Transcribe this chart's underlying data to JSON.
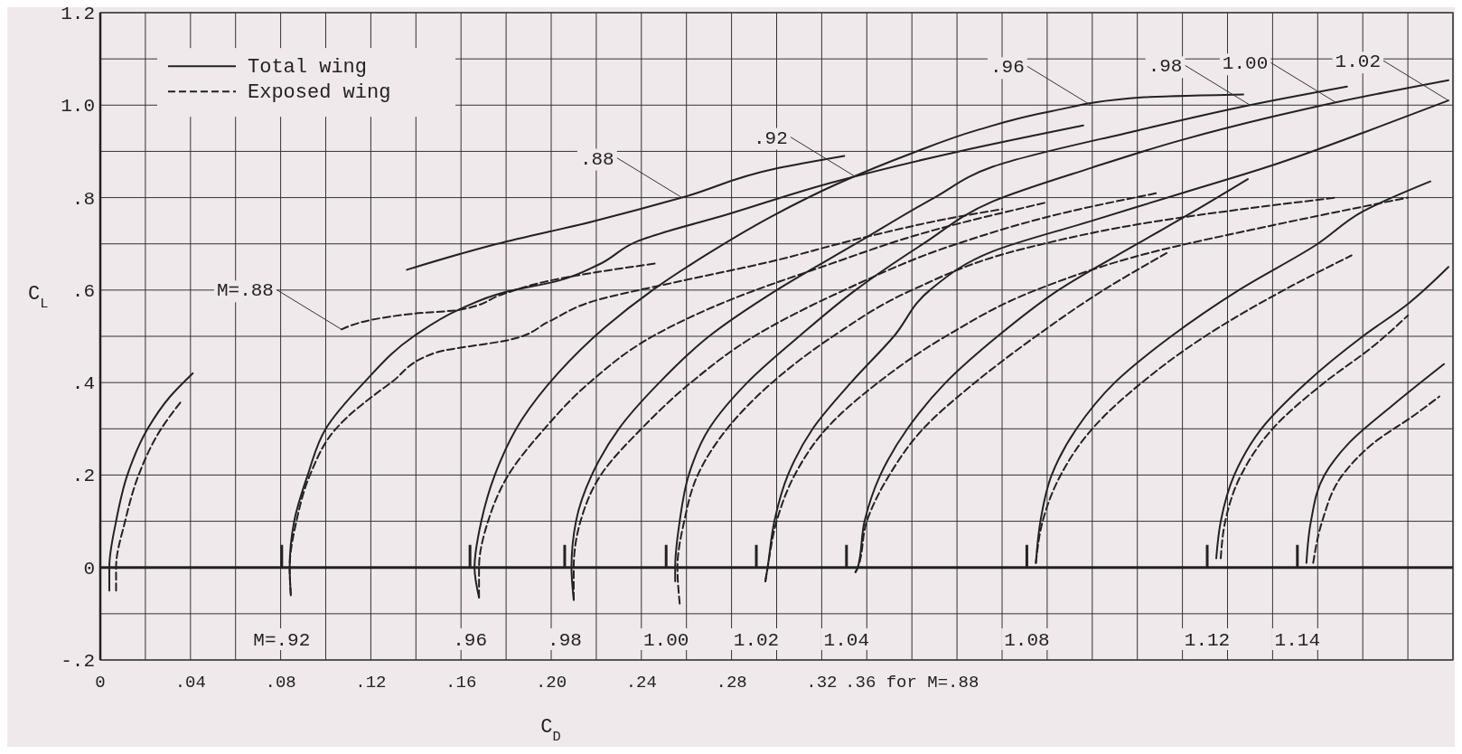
{
  "chart_data": {
    "type": "line",
    "xlabel": "C$_{D}$",
    "ylabel": "C$_{L}$",
    "xlim": [
      0,
      0.6
    ],
    "ylim": [
      -0.2,
      1.2
    ],
    "xticks": [
      0,
      {
        "value": 0.02,
        "label": null
      },
      {
        "value": 0.04,
        "label": ".04"
      },
      {
        "value": 0.06,
        "label": null
      },
      {
        "value": 0.08,
        "label": ".08"
      },
      {
        "value": 0.1,
        "label": null
      },
      {
        "value": 0.12,
        "label": ".12"
      },
      {
        "value": 0.14,
        "label": null
      },
      {
        "value": 0.16,
        "label": ".16"
      },
      {
        "value": 0.18,
        "label": null
      },
      {
        "value": 0.2,
        "label": ".20"
      },
      {
        "value": 0.22,
        "label": null
      },
      {
        "value": 0.24,
        "label": ".24"
      },
      {
        "value": 0.26,
        "label": null
      },
      {
        "value": 0.28,
        "label": ".28"
      },
      {
        "value": 0.3,
        "label": null
      },
      {
        "value": 0.32,
        "label": ".32"
      },
      {
        "value": 0.34,
        "label": null
      },
      {
        "value": 0.36,
        "label": ".36 for M=.88"
      },
      {
        "value": 0.38,
        "label": null
      },
      {
        "value": 0.4,
        "label": null
      },
      {
        "value": 0.42,
        "label": null
      },
      {
        "value": 0.44,
        "label": null
      },
      {
        "value": 0.46,
        "label": null
      },
      {
        "value": 0.48,
        "label": null
      },
      {
        "value": 0.5,
        "label": null
      },
      {
        "value": 0.52,
        "label": null
      },
      {
        "value": 0.54,
        "label": null
      },
      {
        "value": 0.56,
        "label": null
      },
      {
        "value": 0.58,
        "label": null
      },
      {
        "value": 0.6,
        "label": null
      }
    ],
    "yticks": [
      {
        "value": -0.2,
        "label": "-.2"
      },
      {
        "value": -0.1,
        "label": null
      },
      0,
      {
        "value": 0.1,
        "label": null
      },
      {
        "value": 0.2,
        "label": ".2"
      },
      {
        "value": 0.3,
        "label": null
      },
      {
        "value": 0.4,
        "label": ".4"
      },
      {
        "value": 0.5,
        "label": null
      },
      {
        "value": 0.6,
        "label": ".6"
      },
      {
        "value": 0.7,
        "label": null
      },
      {
        "value": 0.8,
        "label": ".8"
      },
      {
        "value": 0.9,
        "label": null
      },
      {
        "value": 1.0,
        "label": "1.0"
      },
      {
        "value": 1.1,
        "label": null
      },
      {
        "value": 1.2,
        "label": "1.2"
      }
    ],
    "grid": true,
    "legend": "top left",
    "ref_lines": [
      {
        "axis": "y",
        "value": 0
      }
    ],
    "series": [
      {
        "name": "Total wing",
        "color": "#222222",
        "line_style": "solid",
        "x": [
          0.004,
          0.004,
          0.007,
          0.012,
          0.021,
          0.031,
          0.041
        ],
        "values": [
          -0.05,
          0,
          0.1,
          0.2,
          0.3,
          0.37,
          0.42
        ]
      },
      {
        "color": "#222222",
        "line_style": "solid",
        "x": [
          0.136,
          0.176,
          0.218,
          0.258,
          0.3,
          0.33
        ],
        "values": [
          0.644,
          0.7,
          0.748,
          0.8,
          0.863,
          0.89
        ]
      },
      {
        "color": "#222222",
        "line_style": "solid",
        "x": [
          0.0845,
          0.084,
          0.086,
          0.092,
          0.1,
          0.117,
          0.139,
          0.16,
          0.179,
          0.203,
          0.221,
          0.238,
          0.279,
          0.324,
          0.381,
          0.436
        ],
        "values": [
          -0.057,
          0,
          0.1,
          0.2,
          0.3,
          0.4,
          0.5,
          0.56,
          0.595,
          0.62,
          0.655,
          0.705,
          0.765,
          0.832,
          0.9,
          0.956
        ]
      },
      {
        "color": "#222222",
        "line_style": "solid",
        "x": [
          0.168,
          0.166,
          0.169,
          0.175,
          0.187,
          0.203,
          0.224,
          0.245,
          0.27,
          0.298,
          0.327,
          0.36,
          0.389,
          0.422,
          0.463,
          0.507
        ],
        "values": [
          -0.065,
          0,
          0.1,
          0.2,
          0.32,
          0.42,
          0.52,
          0.6,
          0.68,
          0.76,
          0.83,
          0.896,
          0.946,
          0.987,
          1.017,
          1.023
        ]
      },
      {
        "color": "#222222",
        "line_style": "solid",
        "x": [
          0.21,
          0.209,
          0.211,
          0.218,
          0.23,
          0.248,
          0.27,
          0.3,
          0.335,
          0.37,
          0.396,
          0.46,
          0.51,
          0.553
        ],
        "values": [
          -0.07,
          0,
          0.1,
          0.2,
          0.3,
          0.4,
          0.5,
          0.6,
          0.7,
          0.8,
          0.867,
          0.945,
          1.0,
          1.04
        ]
      },
      {
        "color": "#222222",
        "line_style": "solid",
        "x": [
          0.255,
          0.255,
          0.257,
          0.261,
          0.27,
          0.287,
          0.31,
          0.335,
          0.365,
          0.396,
          0.44,
          0.48,
          0.52,
          0.548,
          0.598
        ],
        "values": [
          -0.03,
          0,
          0.1,
          0.2,
          0.3,
          0.4,
          0.5,
          0.6,
          0.7,
          0.792,
          0.865,
          0.925,
          0.975,
          1.006,
          1.054
        ]
      },
      {
        "color": "#222222",
        "line_style": "solid",
        "x": [
          0.295,
          0.296,
          0.299,
          0.305,
          0.316,
          0.333,
          0.352,
          0.368,
          0.396,
          0.44,
          0.48,
          0.52,
          0.56,
          0.598
        ],
        "values": [
          -0.03,
          0,
          0.1,
          0.2,
          0.3,
          0.4,
          0.5,
          0.6,
          0.684,
          0.75,
          0.81,
          0.87,
          0.94,
          1.01
        ]
      },
      {
        "color": "#222222",
        "line_style": "solid",
        "x": [
          0.335,
          0.336,
          0.339,
          0.346,
          0.358,
          0.375,
          0.398,
          0.425,
          0.46,
          0.485,
          0.509
        ],
        "values": [
          -0.01,
          0,
          0.1,
          0.2,
          0.3,
          0.4,
          0.5,
          0.6,
          0.7,
          0.77,
          0.84
        ]
      },
      {
        "color": "#222222",
        "line_style": "solid",
        "x": [
          0.415,
          0.417,
          0.422,
          0.433,
          0.45,
          0.475,
          0.505,
          0.54,
          0.56,
          0.59
        ],
        "values": [
          0.01,
          0.1,
          0.2,
          0.3,
          0.4,
          0.5,
          0.6,
          0.7,
          0.77,
          0.835
        ]
      },
      {
        "color": "#222222",
        "line_style": "solid",
        "x": [
          0.495,
          0.497,
          0.503,
          0.515,
          0.535,
          0.56,
          0.58,
          0.598
        ],
        "values": [
          0.02,
          0.1,
          0.2,
          0.3,
          0.4,
          0.5,
          0.57,
          0.65
        ]
      },
      {
        "color": "#222222",
        "line_style": "solid",
        "x": [
          0.535,
          0.537,
          0.543,
          0.554,
          0.573,
          0.596
        ],
        "values": [
          0.01,
          0.1,
          0.2,
          0.27,
          0.35,
          0.44
        ]
      },
      {
        "name": "Exposed wing",
        "color": "#222222",
        "line_style": "dashed",
        "x": [
          0.007,
          0.007,
          0.011,
          0.017,
          0.027,
          0.036
        ],
        "values": [
          -0.05,
          0,
          0.1,
          0.2,
          0.3,
          0.36
        ]
      },
      {
        "color": "#222222",
        "line_style": "dashed",
        "x": [
          0.107,
          0.139,
          0.159,
          0.179,
          0.199,
          0.218,
          0.247
        ],
        "values": [
          0.515,
          0.549,
          0.557,
          0.592,
          0.62,
          0.637,
          0.658
        ]
      },
      {
        "color": "#222222",
        "line_style": "dashed",
        "x": [
          0.0845,
          0.084,
          0.087,
          0.093,
          0.1045,
          0.129,
          0.149,
          0.182,
          0.199,
          0.218,
          0.258,
          0.296,
          0.338,
          0.381,
          0.4
        ],
        "values": [
          -0.06,
          0,
          0.1,
          0.2,
          0.3,
          0.4,
          0.465,
          0.493,
          0.532,
          0.575,
          0.62,
          0.66,
          0.713,
          0.759,
          0.775
        ]
      },
      {
        "color": "#222222",
        "line_style": "dashed",
        "x": [
          0.168,
          0.168,
          0.172,
          0.181,
          0.197,
          0.217,
          0.245,
          0.28,
          0.32,
          0.37,
          0.42
        ],
        "values": [
          -0.065,
          0,
          0.1,
          0.2,
          0.3,
          0.4,
          0.5,
          0.58,
          0.65,
          0.73,
          0.79
        ]
      },
      {
        "color": "#222222",
        "line_style": "dashed",
        "x": [
          0.21,
          0.21,
          0.213,
          0.222,
          0.24,
          0.262,
          0.29,
          0.33,
          0.38,
          0.43,
          0.469
        ],
        "values": [
          -0.07,
          0,
          0.1,
          0.2,
          0.3,
          0.4,
          0.5,
          0.6,
          0.7,
          0.77,
          0.81
        ]
      },
      {
        "color": "#222222",
        "line_style": "dashed",
        "x": [
          0.257,
          0.256,
          0.259,
          0.265,
          0.278,
          0.298,
          0.325,
          0.36,
          0.41,
          0.47,
          0.548
        ],
        "values": [
          -0.078,
          0,
          0.1,
          0.2,
          0.3,
          0.4,
          0.5,
          0.6,
          0.69,
          0.75,
          0.8
        ]
      },
      {
        "color": "#222222",
        "line_style": "dashed",
        "x": [
          0.295,
          0.296,
          0.3,
          0.308,
          0.322,
          0.345,
          0.375,
          0.415,
          0.465,
          0.52,
          0.58
        ],
        "values": [
          -0.03,
          0,
          0.1,
          0.2,
          0.3,
          0.4,
          0.5,
          0.6,
          0.68,
          0.74,
          0.8
        ]
      },
      {
        "color": "#222222",
        "line_style": "dashed",
        "x": [
          0.335,
          0.336,
          0.34,
          0.35,
          0.365,
          0.388,
          0.415,
          0.445,
          0.473
        ],
        "values": [
          -0.01,
          0,
          0.1,
          0.2,
          0.3,
          0.4,
          0.5,
          0.6,
          0.68
        ]
      },
      {
        "color": "#222222",
        "line_style": "dashed",
        "x": [
          0.415,
          0.418,
          0.426,
          0.44,
          0.462,
          0.49,
          0.525,
          0.555
        ],
        "values": [
          0.01,
          0.1,
          0.2,
          0.3,
          0.4,
          0.5,
          0.6,
          0.675
        ]
      },
      {
        "color": "#222222",
        "line_style": "dashed",
        "x": [
          0.497,
          0.499,
          0.506,
          0.52,
          0.543,
          0.565,
          0.58
        ],
        "values": [
          0.02,
          0.1,
          0.2,
          0.3,
          0.4,
          0.48,
          0.545
        ]
      },
      {
        "color": "#222222",
        "line_style": "dashed",
        "x": [
          0.538,
          0.542,
          0.551,
          0.565,
          0.583,
          0.594
        ],
        "values": [
          0.01,
          0.1,
          0.2,
          0.27,
          0.33,
          0.37
        ]
      }
    ],
    "annotations": [
      {
        "text": "M=.88",
        "x": 0.107,
        "y": 0.515
      },
      {
        "text": ".88",
        "x": 0.258,
        "y": 0.8
      },
      {
        "text": ".92",
        "x": 0.335,
        "y": 0.845
      },
      {
        "text": ".96",
        "x": 0.44,
        "y": 0.998
      },
      {
        "text": ".98",
        "x": 0.51,
        "y": 1.0
      },
      {
        "text": "1.00",
        "x": 0.548,
        "y": 1.006
      },
      {
        "text": "1.02",
        "x": 0.598,
        "y": 1.01
      },
      "M=.92",
      ".96",
      ".98",
      "1.00",
      "1.02",
      "1.04",
      "1.08",
      "1.12",
      "1.14"
    ]
  }
}
